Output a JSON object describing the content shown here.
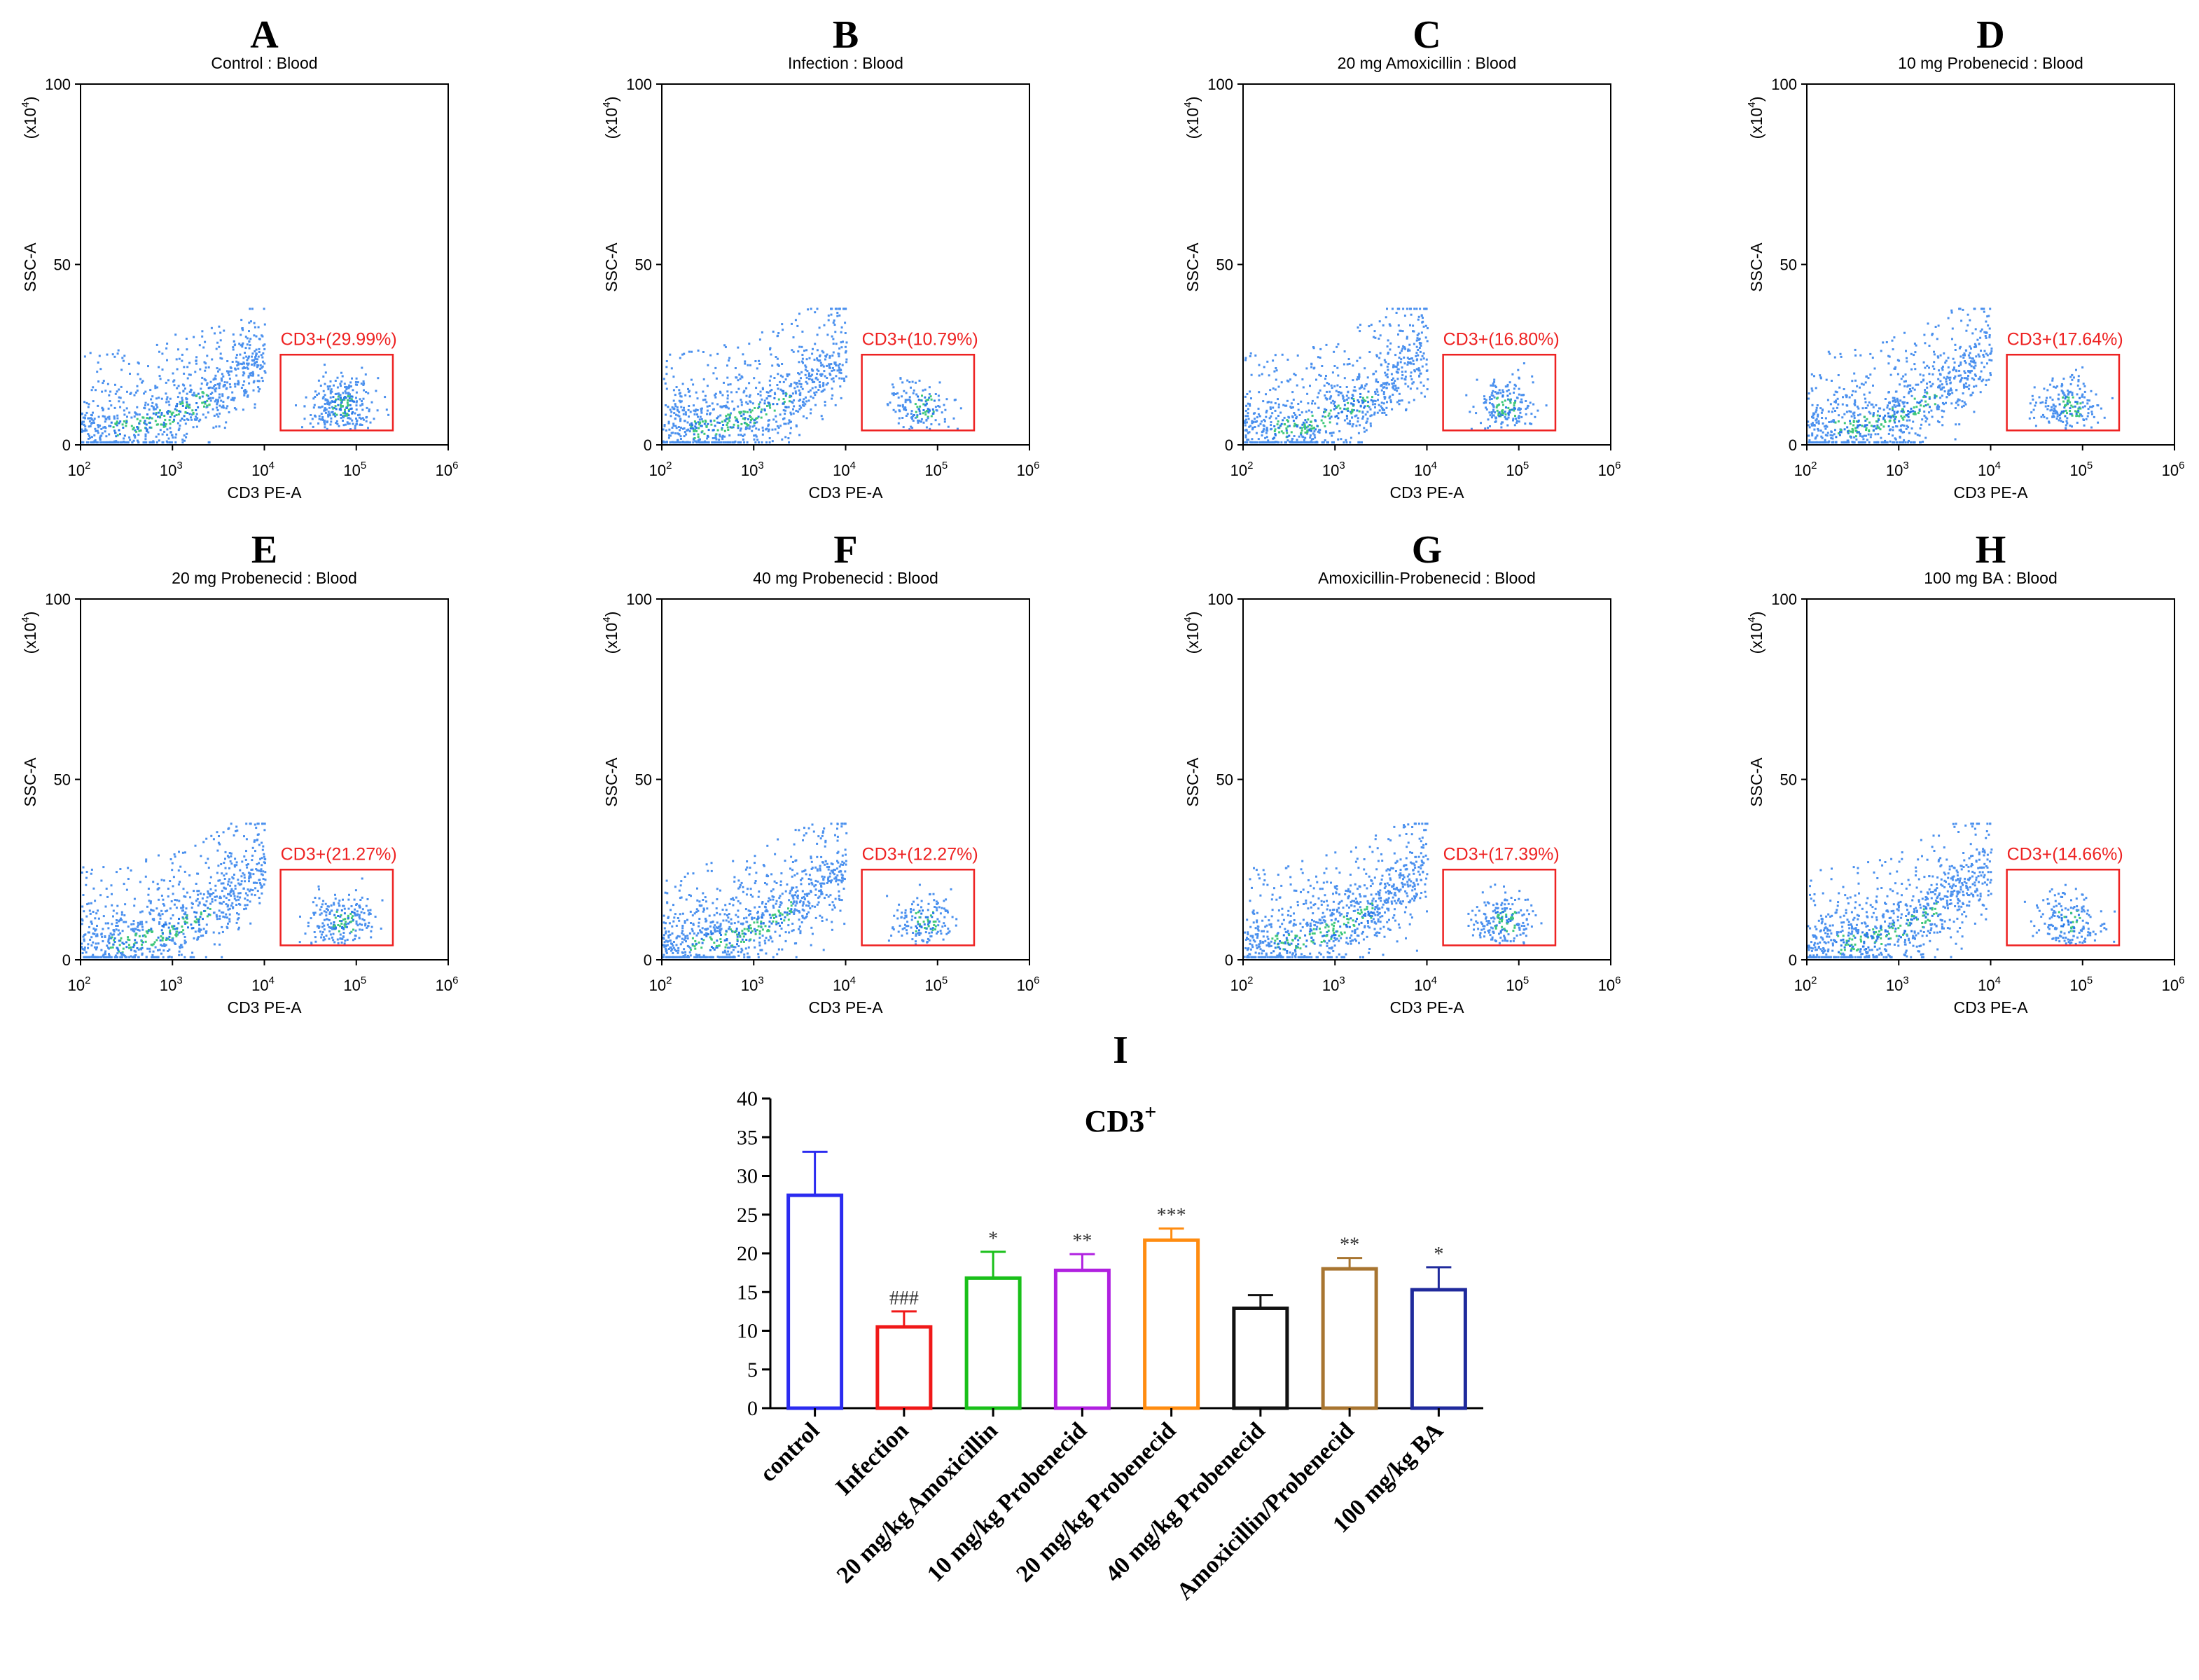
{
  "chart_data": [
    {
      "type": "scatter",
      "panel": "A",
      "title": "Control : Blood",
      "xlabel": "CD3 PE-A",
      "ylabel": "SSC-A",
      "yunit": "(x10",
      "yunit_exp": "4",
      "yunit_close": ")",
      "gate_label": "CD3+(29.99%)",
      "gate_percent": 29.99,
      "ylim": [
        0,
        100
      ],
      "xlim": [
        100,
        1000000
      ],
      "yticks": [
        "0",
        "50",
        "100"
      ],
      "xticks_base": "10",
      "xticks_exp": [
        "2",
        "3",
        "4",
        "5",
        "6"
      ],
      "gate": {
        "x": [
          15000,
          250000
        ],
        "y": [
          4,
          25
        ]
      }
    },
    {
      "type": "scatter",
      "panel": "B",
      "title": "Infection : Blood",
      "xlabel": "CD3 PE-A",
      "ylabel": "SSC-A",
      "yunit": "(x10",
      "yunit_exp": "4",
      "yunit_close": ")",
      "gate_label": "CD3+(10.79%)",
      "gate_percent": 10.79,
      "ylim": [
        0,
        100
      ],
      "xlim": [
        100,
        1000000
      ],
      "yticks": [
        "0",
        "50",
        "100"
      ],
      "xticks_base": "10",
      "xticks_exp": [
        "2",
        "3",
        "4",
        "5",
        "6"
      ],
      "gate": {
        "x": [
          15000,
          250000
        ],
        "y": [
          4,
          25
        ]
      }
    },
    {
      "type": "scatter",
      "panel": "C",
      "title": "20 mg Amoxicillin : Blood",
      "xlabel": "CD3 PE-A",
      "ylabel": "SSC-A",
      "yunit": "(x10",
      "yunit_exp": "4",
      "yunit_close": ")",
      "gate_label": "CD3+(16.80%)",
      "gate_percent": 16.8,
      "ylim": [
        0,
        100
      ],
      "xlim": [
        100,
        1000000
      ],
      "yticks": [
        "0",
        "50",
        "100"
      ],
      "xticks_base": "10",
      "xticks_exp": [
        "2",
        "3",
        "4",
        "5",
        "6"
      ],
      "gate": {
        "x": [
          15000,
          250000
        ],
        "y": [
          4,
          25
        ]
      }
    },
    {
      "type": "scatter",
      "panel": "D",
      "title": "10 mg Probenecid : Blood",
      "xlabel": "CD3 PE-A",
      "ylabel": "SSC-A",
      "yunit": "(x10",
      "yunit_exp": "4",
      "yunit_close": ")",
      "gate_label": "CD3+(17.64%)",
      "gate_percent": 17.64,
      "ylim": [
        0,
        100
      ],
      "xlim": [
        100,
        1000000
      ],
      "yticks": [
        "0",
        "50",
        "100"
      ],
      "xticks_base": "10",
      "xticks_exp": [
        "2",
        "3",
        "4",
        "5",
        "6"
      ],
      "gate": {
        "x": [
          15000,
          250000
        ],
        "y": [
          4,
          25
        ]
      }
    },
    {
      "type": "scatter",
      "panel": "E",
      "title": "20 mg Probenecid : Blood",
      "xlabel": "CD3 PE-A",
      "ylabel": "SSC-A",
      "yunit": "(x10",
      "yunit_exp": "4",
      "yunit_close": ")",
      "gate_label": "CD3+(21.27%)",
      "gate_percent": 21.27,
      "ylim": [
        0,
        100
      ],
      "xlim": [
        100,
        1000000
      ],
      "yticks": [
        "0",
        "50",
        "100"
      ],
      "xticks_base": "10",
      "xticks_exp": [
        "2",
        "3",
        "4",
        "5",
        "6"
      ],
      "gate": {
        "x": [
          15000,
          250000
        ],
        "y": [
          4,
          25
        ]
      }
    },
    {
      "type": "scatter",
      "panel": "F",
      "title": "40 mg Probenecid : Blood",
      "xlabel": "CD3 PE-A",
      "ylabel": "SSC-A",
      "yunit": "(x10",
      "yunit_exp": "4",
      "yunit_close": ")",
      "gate_label": "CD3+(12.27%)",
      "gate_percent": 12.27,
      "ylim": [
        0,
        100
      ],
      "xlim": [
        100,
        1000000
      ],
      "yticks": [
        "0",
        "50",
        "100"
      ],
      "xticks_base": "10",
      "xticks_exp": [
        "2",
        "3",
        "4",
        "5",
        "6"
      ],
      "gate": {
        "x": [
          15000,
          250000
        ],
        "y": [
          4,
          25
        ]
      }
    },
    {
      "type": "scatter",
      "panel": "G",
      "title": "Amoxicillin-Probenecid : Blood",
      "xlabel": "CD3 PE-A",
      "ylabel": "SSC-A",
      "yunit": "(x10",
      "yunit_exp": "4",
      "yunit_close": ")",
      "gate_label": "CD3+(17.39%)",
      "gate_percent": 17.39,
      "ylim": [
        0,
        100
      ],
      "xlim": [
        100,
        1000000
      ],
      "yticks": [
        "0",
        "50",
        "100"
      ],
      "xticks_base": "10",
      "xticks_exp": [
        "2",
        "3",
        "4",
        "5",
        "6"
      ],
      "gate": {
        "x": [
          15000,
          250000
        ],
        "y": [
          4,
          25
        ]
      }
    },
    {
      "type": "scatter",
      "panel": "H",
      "title": "100 mg BA : Blood",
      "xlabel": "CD3 PE-A",
      "ylabel": "SSC-A",
      "yunit": "(x10",
      "yunit_exp": "4",
      "yunit_close": ")",
      "gate_label": "CD3+(14.66%)",
      "gate_percent": 14.66,
      "ylim": [
        0,
        100
      ],
      "xlim": [
        100,
        1000000
      ],
      "yticks": [
        "0",
        "50",
        "100"
      ],
      "xticks_base": "10",
      "xticks_exp": [
        "2",
        "3",
        "4",
        "5",
        "6"
      ],
      "gate": {
        "x": [
          15000,
          250000
        ],
        "y": [
          4,
          25
        ]
      }
    },
    {
      "type": "bar",
      "panel": "I",
      "title": "CD3",
      "title_sup": "+",
      "categories": [
        "control",
        "Infection",
        "20 mg/kg Amoxicillin",
        "10 mg/kg Probenecid",
        "20 mg/kg Probenecid",
        "40 mg/kg Probenecid",
        "Amoxicillin/Probenecid",
        "100 mg/kg BA"
      ],
      "values": [
        27.5,
        10.5,
        16.8,
        17.8,
        21.7,
        12.9,
        18.0,
        15.3
      ],
      "errors": [
        5.6,
        2.0,
        3.4,
        2.1,
        1.5,
        1.7,
        1.4,
        2.9
      ],
      "significance": [
        "",
        "###",
        "*",
        "**",
        "***",
        "",
        "**",
        "*"
      ],
      "colors": [
        "#2b2bf0",
        "#f01818",
        "#19c019",
        "#b020e0",
        "#ff8c10",
        "#111111",
        "#a87530",
        "#1f2a9c"
      ],
      "ylim": [
        0,
        40
      ],
      "yticks": [
        "0",
        "5",
        "10",
        "15",
        "20",
        "25",
        "30",
        "35",
        "40"
      ]
    }
  ]
}
